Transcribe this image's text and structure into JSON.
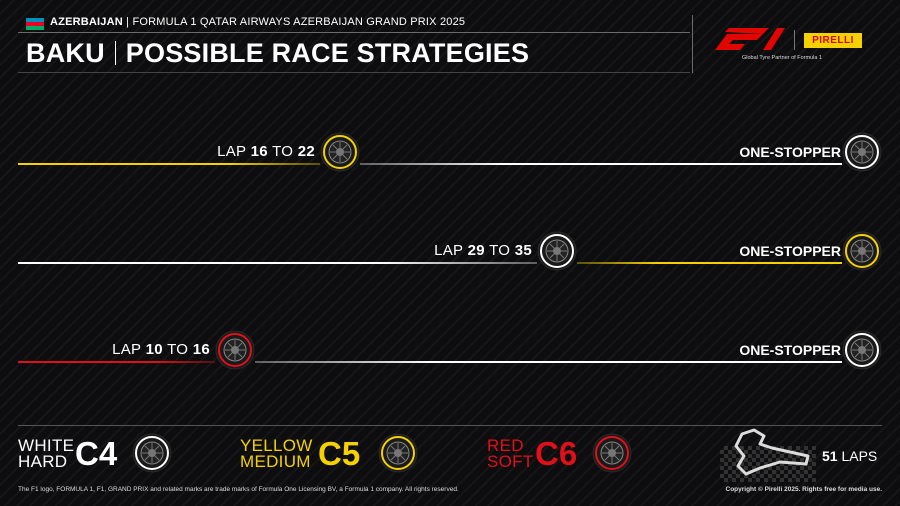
{
  "header": {
    "country": "AZERBAIJAN",
    "event": "| FORMULA 1 QATAR AIRWAYS AZERBAIJAN GRAND PRIX 2025",
    "title_left": "BAKU",
    "title_right": "POSSIBLE RACE STRATEGIES",
    "partner_text": "Global Tyre Partner of Formula 1",
    "pirelli_label": "PIRELLI",
    "f1_logo_label": "F1"
  },
  "strategies": [
    {
      "lap_prefix": "LAP",
      "lap_from": "16",
      "lap_to_word": "TO",
      "lap_to": "22",
      "label": "ONE-STOPPER",
      "first_compound": "yellow",
      "second_compound": "white"
    },
    {
      "lap_prefix": "LAP",
      "lap_from": "29",
      "lap_to_word": "TO",
      "lap_to": "35",
      "label": "ONE-STOPPER",
      "first_compound": "white",
      "second_compound": "yellow"
    },
    {
      "lap_prefix": "LAP",
      "lap_from": "10",
      "lap_to_word": "TO",
      "lap_to": "16",
      "label": "ONE-STOPPER",
      "first_compound": "red",
      "second_compound": "white"
    }
  ],
  "legend": [
    {
      "color_word": "WHITE",
      "type_word": "HARD",
      "code": "C4",
      "color": "#ffffff"
    },
    {
      "color_word": "YELLOW",
      "type_word": "MEDIUM",
      "code": "C5",
      "color": "#f6d100"
    },
    {
      "color_word": "RED",
      "type_word": "SOFT",
      "code": "C6",
      "color": "#e0101a"
    }
  ],
  "race": {
    "laps_number": "51",
    "laps_word": "LAPS"
  },
  "footer": {
    "trademark": "The F1 logo, FORMULA 1, F1, GRAND PRIX and related marks are trade marks of Formula One Licensing BV, a Formula 1 company. All rights reserved.",
    "copyright": "Copyright © Pirelli 2025. Rights free for media use."
  },
  "colors": {
    "white": "#ffffff",
    "yellow": "#f6d100",
    "red": "#e0101a",
    "background": "#0d0d0f"
  },
  "icons": [
    "azerbaijan-flag-icon",
    "tyre-icon",
    "track-map-icon",
    "checkered-flag-icon"
  ]
}
